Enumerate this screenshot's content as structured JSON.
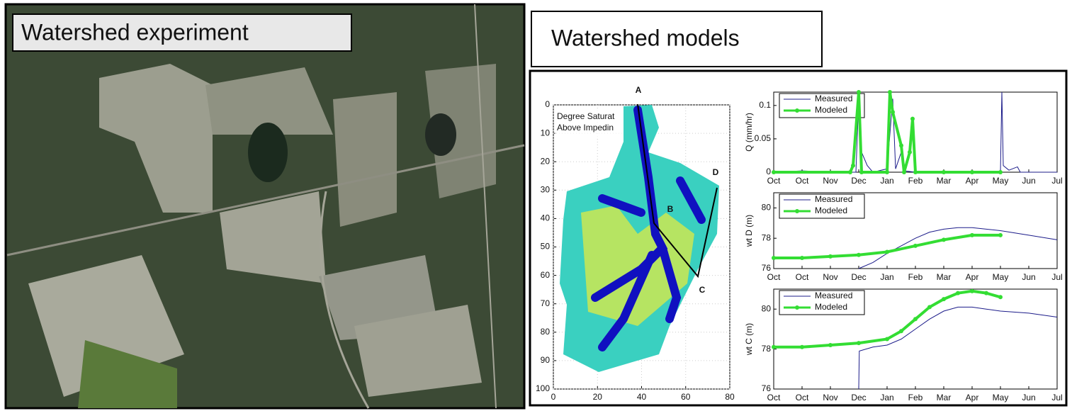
{
  "left_panel": {
    "title": "Watershed experiment"
  },
  "right_panel": {
    "title": "Watershed models"
  },
  "chart_data": [
    {
      "type": "heatmap",
      "annotations": [
        "Degree Saturat",
        "Above Impedin"
      ],
      "point_labels": [
        "A",
        "B",
        "C",
        "D"
      ],
      "xlim": [
        0,
        80
      ],
      "xticks": [
        0,
        20,
        40,
        60,
        80
      ],
      "ylim": [
        0,
        100
      ],
      "yticks": [
        0,
        10,
        20,
        30,
        40,
        50,
        60,
        70,
        80,
        90,
        100
      ]
    },
    {
      "type": "line",
      "ylabel": "Q (mm/hr)",
      "xlim": [
        0,
        10
      ],
      "xticks": [
        {
          "value": 0,
          "label": "Oct"
        },
        {
          "value": 1,
          "label": "Oct"
        },
        {
          "value": 2,
          "label": "Nov"
        },
        {
          "value": 3,
          "label": "Dec"
        },
        {
          "value": 4,
          "label": "Jan"
        },
        {
          "value": 5,
          "label": "Feb"
        },
        {
          "value": 6,
          "label": "Mar"
        },
        {
          "value": 7,
          "label": "Apr"
        },
        {
          "value": 8,
          "label": "May"
        },
        {
          "value": 9,
          "label": "Jun"
        },
        {
          "value": 10,
          "label": "Jul"
        }
      ],
      "ylim": [
        0,
        0.12
      ],
      "yticks": [
        0,
        0.05,
        0.1
      ],
      "series": [
        {
          "name": "Measured",
          "color": "#1c1c8a",
          "x": [
            0,
            1,
            2,
            2.9,
            3.0,
            3.1,
            3.3,
            3.5,
            4.0,
            4.2,
            4.3,
            4.5,
            4.6,
            5,
            6,
            7,
            8.0,
            8.05,
            8.1,
            8.3,
            8.6,
            8.7,
            9,
            10
          ],
          "values": [
            0,
            0.002,
            0,
            0,
            0.11,
            0.03,
            0.01,
            0,
            0.005,
            0.11,
            0.005,
            0.03,
            0.002,
            0,
            0,
            0,
            0,
            0.12,
            0.01,
            0.003,
            0.008,
            0,
            0,
            0
          ]
        },
        {
          "name": "Modeled",
          "color": "#33dd33",
          "x": [
            0,
            2.7,
            2.8,
            3.0,
            3.1,
            4.0,
            4.1,
            4.2,
            4.5,
            4.6,
            4.8,
            4.9,
            5,
            6,
            7,
            8
          ],
          "values": [
            0,
            0,
            0.01,
            0.12,
            0,
            0,
            0.12,
            0.09,
            0.04,
            0,
            0.03,
            0.08,
            0,
            0,
            0,
            0
          ]
        }
      ]
    },
    {
      "type": "line",
      "ylabel": "wt D (m)",
      "xlim": [
        0,
        10
      ],
      "xticks": [
        {
          "value": 0,
          "label": "Oct"
        },
        {
          "value": 1,
          "label": "Oct"
        },
        {
          "value": 2,
          "label": "Nov"
        },
        {
          "value": 3,
          "label": "Dec"
        },
        {
          "value": 4,
          "label": "Jan"
        },
        {
          "value": 5,
          "label": "Feb"
        },
        {
          "value": 6,
          "label": "Mar"
        },
        {
          "value": 7,
          "label": "Apr"
        },
        {
          "value": 8,
          "label": "May"
        },
        {
          "value": 9,
          "label": "Jun"
        },
        {
          "value": 10,
          "label": "Jul"
        }
      ],
      "ylim": [
        76,
        81
      ],
      "yticks": [
        76,
        78,
        80
      ],
      "series": [
        {
          "name": "Measured",
          "color": "#1c1c8a",
          "x": [
            3,
            3.5,
            4,
            4.5,
            5,
            5.5,
            6,
            6.5,
            7,
            7.5,
            8,
            9,
            10
          ],
          "values": [
            76,
            76.4,
            77,
            77.5,
            78,
            78.4,
            78.6,
            78.7,
            78.7,
            78.6,
            78.5,
            78.2,
            77.9
          ]
        },
        {
          "name": "Modeled",
          "color": "#33dd33",
          "x": [
            0,
            1,
            2,
            3,
            4,
            5,
            6,
            7,
            8
          ],
          "values": [
            76.7,
            76.7,
            76.8,
            76.9,
            77.1,
            77.5,
            77.9,
            78.2,
            78.2
          ]
        }
      ]
    },
    {
      "type": "line",
      "ylabel": "wt C (m)",
      "xlim": [
        0,
        10
      ],
      "xticks": [
        {
          "value": 0,
          "label": "Oct"
        },
        {
          "value": 1,
          "label": "Oct"
        },
        {
          "value": 2,
          "label": "Nov"
        },
        {
          "value": 3,
          "label": "Dec"
        },
        {
          "value": 4,
          "label": "Jan"
        },
        {
          "value": 5,
          "label": "Feb"
        },
        {
          "value": 6,
          "label": "Mar"
        },
        {
          "value": 7,
          "label": "Apr"
        },
        {
          "value": 8,
          "label": "May"
        },
        {
          "value": 9,
          "label": "Jun"
        },
        {
          "value": 10,
          "label": "Jul"
        }
      ],
      "ylim": [
        76,
        81
      ],
      "yticks": [
        76,
        78,
        80
      ],
      "series": [
        {
          "name": "Measured",
          "color": "#1c1c8a",
          "x": [
            3,
            3.02,
            3.5,
            4,
            4.5,
            5,
            5.5,
            6,
            6.5,
            7,
            7.5,
            8,
            9,
            10
          ],
          "values": [
            76,
            77.9,
            78.1,
            78.2,
            78.5,
            79.0,
            79.5,
            79.9,
            80.1,
            80.1,
            80.0,
            79.9,
            79.8,
            79.6
          ]
        },
        {
          "name": "Modeled",
          "color": "#33dd33",
          "x": [
            0,
            1,
            2,
            3,
            4,
            4.5,
            5,
            5.5,
            6,
            6.5,
            7,
            7.5,
            8
          ],
          "values": [
            78.1,
            78.1,
            78.2,
            78.3,
            78.5,
            78.9,
            79.5,
            80.1,
            80.5,
            80.8,
            80.9,
            80.8,
            80.6
          ]
        }
      ]
    }
  ]
}
